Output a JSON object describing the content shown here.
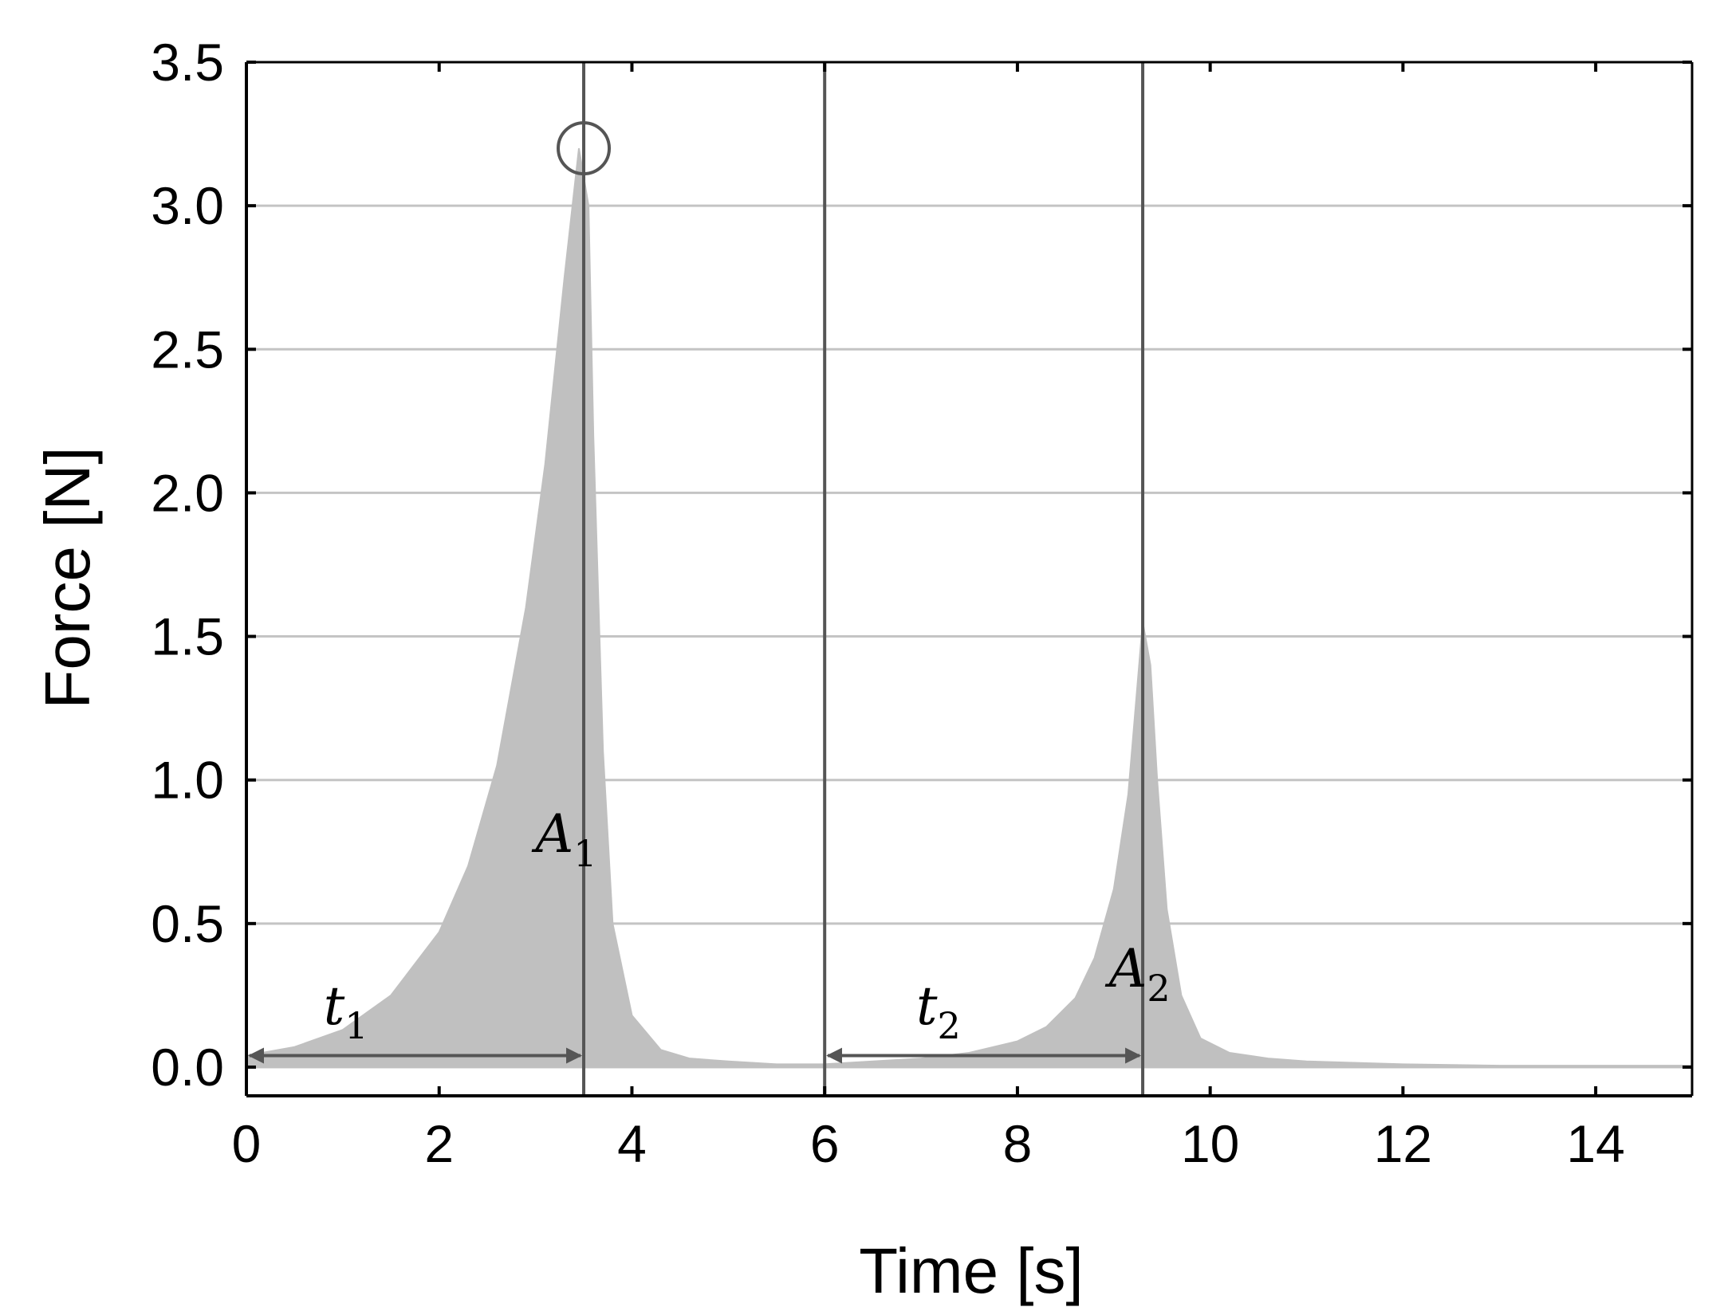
{
  "chart_data": {
    "type": "area",
    "xlabel": "Time [s]",
    "ylabel": "Force [N]",
    "xlim": [
      0,
      15
    ],
    "ylim": [
      -0.1,
      3.5
    ],
    "xticks": [
      0,
      2,
      4,
      6,
      8,
      10,
      12,
      14
    ],
    "yticks": [
      0.0,
      0.5,
      1.0,
      1.5,
      2.0,
      2.5,
      3.0,
      3.5
    ],
    "xtick_labels": [
      "0",
      "2",
      "4",
      "6",
      "8",
      "10",
      "12",
      "14"
    ],
    "ytick_labels": [
      "0.0",
      "0.5",
      "1.0",
      "1.5",
      "2.0",
      "2.5",
      "3.0",
      "3.5"
    ],
    "grid": "horizontal",
    "fill_color": "#c0c0c0",
    "line_color": "#555555",
    "series": [
      {
        "x": [
          0.0,
          0.5,
          1.0,
          1.5,
          2.0,
          2.3,
          2.6,
          2.9,
          3.1,
          3.3,
          3.45,
          3.55,
          3.6,
          3.7,
          3.8,
          4.0,
          4.3,
          4.6,
          5.0,
          5.5,
          6.0
        ],
        "y": [
          0.04,
          0.07,
          0.13,
          0.25,
          0.47,
          0.7,
          1.05,
          1.6,
          2.1,
          2.75,
          3.2,
          3.0,
          2.2,
          1.1,
          0.5,
          0.18,
          0.06,
          0.03,
          0.02,
          0.01,
          0.01
        ]
      },
      {
        "x": [
          6.0,
          6.5,
          7.0,
          7.5,
          8.0,
          8.3,
          8.6,
          8.8,
          9.0,
          9.15,
          9.3,
          9.38,
          9.45,
          9.55,
          9.7,
          9.9,
          10.2,
          10.6,
          11.0,
          12.0,
          13.0,
          14.0,
          15.0
        ],
        "y": [
          0.01,
          0.02,
          0.03,
          0.05,
          0.09,
          0.14,
          0.24,
          0.38,
          0.62,
          0.95,
          1.55,
          1.4,
          1.0,
          0.55,
          0.25,
          0.1,
          0.05,
          0.03,
          0.02,
          0.01,
          0.005,
          0.005,
          0.005
        ]
      }
    ],
    "vertical_lines": [
      3.5,
      6.0,
      9.3
    ],
    "peak_marker": {
      "x": 3.5,
      "y": 3.2
    },
    "annotations": [
      {
        "base": "A",
        "sub": "1",
        "x": 3.0,
        "y": 0.75
      },
      {
        "base": "A",
        "sub": "2",
        "x": 8.95,
        "y": 0.28
      },
      {
        "base": "t",
        "sub": "1",
        "x": 0.8,
        "y": 0.15
      },
      {
        "base": "t",
        "sub": "2",
        "x": 6.95,
        "y": 0.15
      }
    ],
    "arrows": [
      {
        "x1": 0.0,
        "x2": 3.5,
        "y": 0.04
      },
      {
        "x1": 6.0,
        "x2": 9.3,
        "y": 0.04
      }
    ]
  }
}
